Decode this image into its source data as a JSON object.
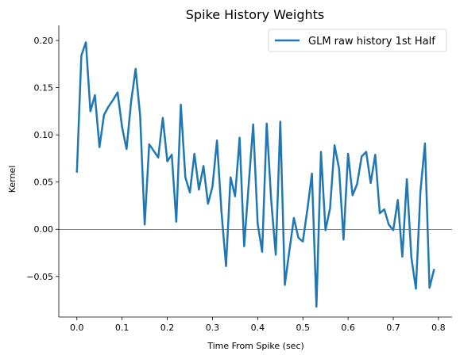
{
  "chart_data": {
    "type": "line",
    "title": "Spike History Weights",
    "xlabel": "Time From Spike (sec)",
    "ylabel": "Kernel",
    "xlim": [
      -0.04,
      0.83
    ],
    "ylim": [
      -0.093,
      0.216
    ],
    "xticks": [
      0.0,
      0.1,
      0.2,
      0.3,
      0.4,
      0.5,
      0.6,
      0.7,
      0.8
    ],
    "xtick_labels": [
      "0.0",
      "0.1",
      "0.2",
      "0.3",
      "0.4",
      "0.5",
      "0.6",
      "0.7",
      "0.8"
    ],
    "yticks": [
      -0.05,
      0.0,
      0.05,
      0.1,
      0.15,
      0.2
    ],
    "ytick_labels": [
      "−0.05",
      "0.00",
      "0.05",
      "0.10",
      "0.15",
      "0.20"
    ],
    "hline": 0.0,
    "legend_position": "top-right",
    "grid": false,
    "series": [
      {
        "name": "GLM raw history 1st Half",
        "color": "#1f77b4",
        "x": [
          0.0,
          0.01,
          0.02,
          0.03,
          0.04,
          0.05,
          0.06,
          0.07,
          0.08,
          0.09,
          0.1,
          0.11,
          0.12,
          0.13,
          0.14,
          0.15,
          0.16,
          0.17,
          0.18,
          0.19,
          0.2,
          0.21,
          0.22,
          0.23,
          0.24,
          0.25,
          0.26,
          0.27,
          0.28,
          0.29,
          0.3,
          0.31,
          0.32,
          0.33,
          0.34,
          0.35,
          0.36,
          0.37,
          0.38,
          0.39,
          0.4,
          0.41,
          0.42,
          0.43,
          0.44,
          0.45,
          0.46,
          0.47,
          0.48,
          0.49,
          0.5,
          0.51,
          0.52,
          0.53,
          0.54,
          0.55,
          0.56,
          0.57,
          0.58,
          0.59,
          0.6,
          0.61,
          0.62,
          0.63,
          0.64,
          0.65,
          0.66,
          0.67,
          0.68,
          0.69,
          0.7,
          0.71,
          0.72,
          0.73,
          0.74,
          0.75,
          0.76,
          0.77,
          0.78,
          0.79
        ],
        "y": [
          0.061,
          0.184,
          0.198,
          0.125,
          0.142,
          0.087,
          0.121,
          0.13,
          0.137,
          0.145,
          0.108,
          0.085,
          0.135,
          0.17,
          0.12,
          0.005,
          0.09,
          0.083,
          0.076,
          0.118,
          0.072,
          0.079,
          0.008,
          0.132,
          0.055,
          0.039,
          0.08,
          0.042,
          0.067,
          0.027,
          0.045,
          0.094,
          0.018,
          -0.039,
          0.055,
          0.035,
          0.097,
          -0.018,
          0.047,
          0.111,
          0.006,
          -0.024,
          0.112,
          0.03,
          -0.027,
          0.114,
          -0.059,
          -0.023,
          0.012,
          -0.009,
          -0.013,
          0.021,
          0.059,
          -0.082,
          0.082,
          -0.001,
          0.022,
          0.089,
          0.064,
          -0.011,
          0.08,
          0.036,
          0.048,
          0.077,
          0.082,
          0.049,
          0.079,
          0.017,
          0.021,
          0.005,
          -0.001,
          0.031,
          -0.029,
          0.053,
          -0.03,
          -0.063,
          0.04,
          0.091,
          -0.062,
          -0.043
        ]
      }
    ]
  }
}
